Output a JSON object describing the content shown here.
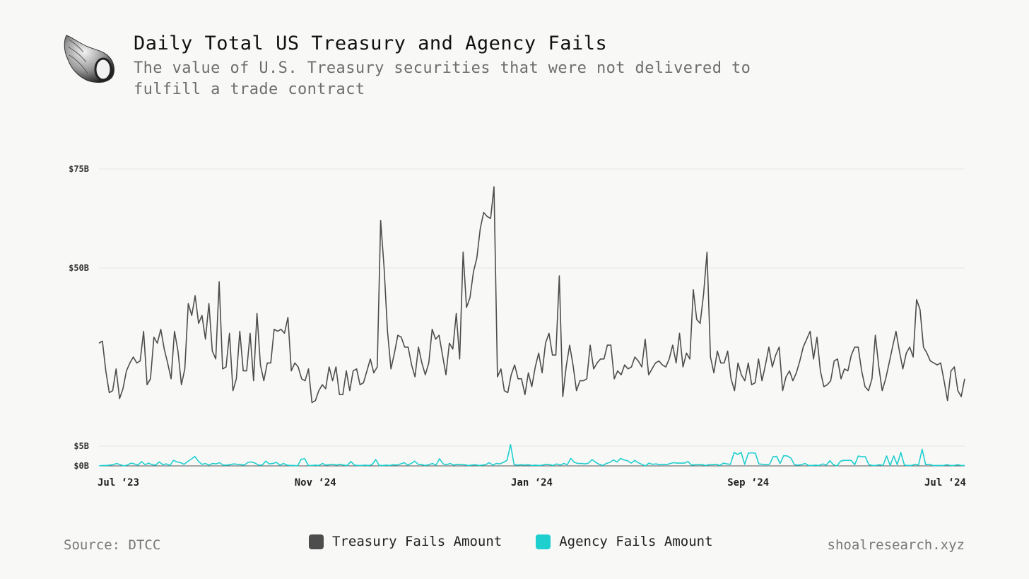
{
  "header": {
    "title": "Daily Total US Treasury and Agency Fails",
    "subtitle": "The value of U.S. Treasury securities that were not delivered to fulfill a trade contract",
    "logo_icon": "seashell-icon"
  },
  "footer": {
    "source": "Source: DTCC",
    "site": "shoalresearch.xyz"
  },
  "legend": [
    {
      "label": "Treasury Fails Amount",
      "color": "#4d4d4d"
    },
    {
      "label": "Agency Fails Amount",
      "color": "#1ecfd0"
    }
  ],
  "chart_data": {
    "type": "line",
    "x_range": [
      "2023-07",
      "2024-07"
    ],
    "x_ticks": [
      "Jul ‘23",
      "Nov ‘24",
      "Jan ‘24",
      "Sep ‘24",
      "Jul ‘24"
    ],
    "y_ticks": [
      {
        "label": "$0B",
        "value": 0
      },
      {
        "label": "$5B",
        "value": 5
      },
      {
        "label": "$50B",
        "value": 50
      },
      {
        "label": "$75B",
        "value": 75
      }
    ],
    "ylim": [
      0,
      75
    ],
    "grid": true,
    "legend_position": "bottom-center",
    "series": [
      {
        "name": "Treasury Fails Amount",
        "color": "#4d4d4d",
        "values": [
          31,
          31.5,
          24,
          18.5,
          19,
          24.5,
          17,
          19.5,
          24,
          26,
          27.5,
          26,
          26.5,
          34,
          20.5,
          22,
          32.5,
          31,
          34.5,
          29.5,
          26,
          22,
          34,
          29,
          20.5,
          24.5,
          41,
          38,
          43,
          36,
          38,
          32,
          41,
          29,
          27,
          46.5,
          24.5,
          25,
          33.5,
          19,
          22,
          34,
          24,
          24,
          33.5,
          21.5,
          38.5,
          25.5,
          21.5,
          26,
          26,
          34.5,
          34,
          34.5,
          33.5,
          37.5,
          24,
          26,
          25,
          22,
          21.5,
          24.5,
          16,
          16.5,
          19,
          20.5,
          19.5,
          25,
          21.5,
          25,
          18,
          18,
          24,
          19,
          24,
          24.5,
          20.5,
          21,
          24,
          27,
          23.5,
          25,
          62,
          50,
          34,
          24.5,
          28.5,
          33,
          32.5,
          30,
          30,
          25.5,
          22.5,
          30,
          26,
          23,
          26,
          34.5,
          32,
          33,
          28,
          23,
          31,
          29.5,
          38.5,
          27,
          54,
          40,
          42.5,
          49,
          52.5,
          60,
          64,
          63,
          62.5,
          70.5,
          22.5,
          24.5,
          19,
          18.5,
          23,
          25.5,
          22,
          22,
          18,
          23.5,
          20,
          25,
          28.5,
          23.5,
          31,
          33.5,
          28,
          28,
          48,
          17.5,
          25,
          30.5,
          25.5,
          19,
          21.5,
          21.5,
          22,
          30.5,
          24.5,
          26,
          27,
          27,
          30.5,
          30.5,
          22,
          24,
          23,
          25.5,
          24.5,
          25,
          27.5,
          26.5,
          25,
          32,
          23,
          24.5,
          26,
          26.5,
          25.5,
          25,
          27,
          30.5,
          26,
          33.5,
          25,
          28.5,
          27,
          44.5,
          37,
          36,
          43.5,
          54,
          27.5,
          23.5,
          29,
          26,
          26,
          29,
          22,
          19,
          26,
          23,
          21.5,
          26,
          20.5,
          21,
          27,
          21.5,
          25.5,
          30,
          25,
          28,
          30,
          19,
          22.5,
          24,
          21.5,
          23.5,
          26.5,
          30,
          32,
          34,
          27,
          32.5,
          24,
          20,
          20.5,
          21.5,
          26.5,
          27,
          22,
          24.5,
          24,
          28,
          30,
          30,
          24,
          20,
          19,
          22,
          33,
          25,
          19,
          22,
          26,
          30,
          34,
          29,
          24.5,
          28.5,
          30,
          27.5,
          42,
          39.5,
          30,
          28.5,
          26.5,
          26,
          25.5,
          26,
          21.5,
          16.5,
          24,
          25,
          19,
          17.5,
          22
        ],
        "start": "2023-07-03"
      },
      {
        "name": "Agency Fails Amount",
        "color": "#1ecfd0",
        "values": [
          0,
          0.1,
          0.1,
          0.2,
          0.3,
          0.6,
          0.3,
          0,
          0.2,
          0.7,
          0.5,
          0.2,
          1.1,
          0.3,
          0.7,
          0.3,
          0.2,
          1,
          0.3,
          0.5,
          0.1,
          1.4,
          1,
          0.8,
          0.4,
          1.1,
          1.7,
          2.4,
          1.2,
          0.4,
          0.6,
          0.2,
          0.6,
          0.5,
          0.8,
          0.2,
          0.2,
          0.3,
          0.5,
          0.4,
          0.3,
          0.2,
          0.9,
          1,
          0.7,
          0.2,
          0.2,
          1.2,
          0.5,
          0.6,
          0.9,
          0.2,
          0.6,
          0.2,
          0.1,
          0.1,
          0,
          1.7,
          1.8,
          0.1,
          0.1,
          0.2,
          0.1,
          0.6,
          0.2,
          0.3,
          0.4,
          0.2,
          0.4,
          0.2,
          0.1,
          1.1,
          0.2,
          0.1,
          0.1,
          0.2,
          0.1,
          0.3,
          1.6,
          0.1,
          0.1,
          0.2,
          0.1,
          0.3,
          0.2,
          0.5,
          0.8,
          0.2,
          0.6,
          1.2,
          0.4,
          0.3,
          0.1,
          0.3,
          0.6,
          0.2,
          1.8,
          0.5,
          0.3,
          0.6,
          0.2,
          0.4,
          0.3,
          0.3,
          0.1,
          0.2,
          0.3,
          0.1,
          0.2,
          0.3,
          0.8,
          0.2,
          0.6,
          0.5,
          0.9,
          1.4,
          5.4,
          0.3,
          0.2,
          0.3,
          0.2,
          0.3,
          0.1,
          0.2,
          0.1,
          0.2,
          0.4,
          0.3,
          0.1,
          0.5,
          0.2,
          0.6,
          0.3,
          1.9,
          0.9,
          0.6,
          0.6,
          0.5,
          0.7,
          1.6,
          0.9,
          0.4,
          0.1,
          0.6,
          0.9,
          1.5,
          1,
          1.9,
          1.5,
          1.3,
          0.7,
          1.4,
          0.8,
          0.4,
          0,
          0.7,
          0.4,
          0.5,
          0.3,
          0.4,
          0.3,
          0.6,
          0.8,
          0.7,
          0.7,
          0.7,
          1.1,
          0.2,
          0.3,
          0.3,
          0.3,
          0.1,
          0.3,
          0.3,
          0.4,
          0.1,
          0.7,
          0.5,
          0.4,
          3.4,
          2.9,
          3.4,
          0.4,
          3.2,
          3.3,
          3.2,
          0.5,
          0.4,
          0.3,
          0.4,
          2.3,
          2.4,
          0.6,
          2.6,
          2.5,
          2,
          0.3,
          0.2,
          0.3,
          0.6,
          0.1,
          0.1,
          0.2,
          0.1,
          0.5,
          0.2,
          1.3,
          0.3,
          0,
          1.2,
          1.4,
          1.4,
          1.4,
          0.3,
          2.5,
          2.3,
          2.3,
          0.3,
          0.1,
          0.1,
          0.3,
          0.1,
          2.5,
          0.1,
          2.5,
          0.3,
          3.4,
          0.2,
          0.1,
          0.1,
          0.4,
          0.2,
          4.2,
          0.3,
          0.4,
          0.1,
          0.1,
          0.1,
          0.1,
          0.3,
          0.1,
          0.1,
          0.3,
          0.1,
          0.1
        ],
        "start": "2023-07-03"
      }
    ]
  }
}
